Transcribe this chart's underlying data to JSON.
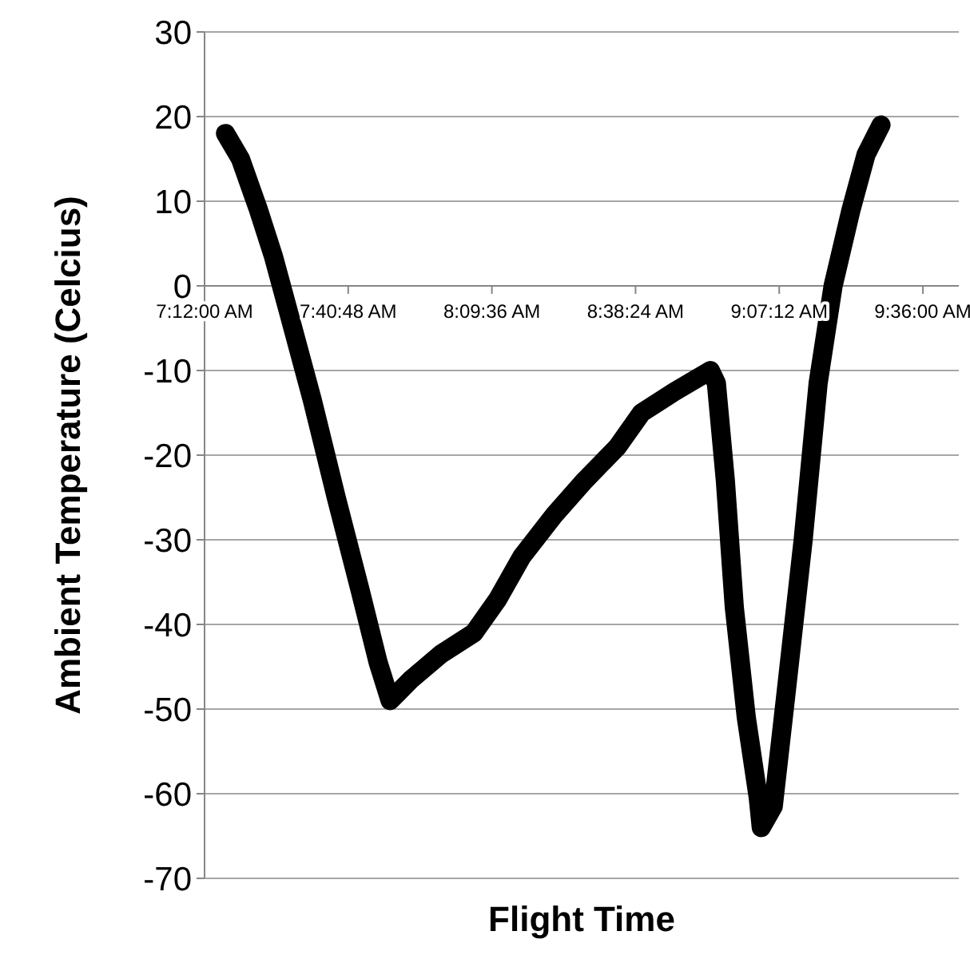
{
  "chart_data": {
    "type": "line",
    "xlabel": "Flight Time",
    "ylabel": "Ambient Temperature (Celcius)",
    "xlim": [
      7.2,
      9.72
    ],
    "xticks": [
      {
        "value": 7.2,
        "label": "7:12:00 AM"
      },
      {
        "value": 7.68,
        "label": "7:40:48 AM"
      },
      {
        "value": 8.16,
        "label": "8:09:36 AM"
      },
      {
        "value": 8.64,
        "label": "8:38:24 AM"
      },
      {
        "value": 9.12,
        "label": "9:07:12 AM"
      },
      {
        "value": 9.6,
        "label": "9:36:00 AM"
      }
    ],
    "ylim": [
      -70,
      30
    ],
    "yticks": [
      -70,
      -60,
      -50,
      -40,
      -30,
      -20,
      -10,
      0,
      10,
      20,
      30
    ],
    "grid": "y",
    "marker": "none",
    "line_style": "solid",
    "series": [
      {
        "color": "#000000",
        "x": [
          7.27,
          7.32,
          7.38,
          7.43,
          7.48,
          7.56,
          7.64,
          7.72,
          7.78,
          7.82,
          7.89,
          7.99,
          8.1,
          8.18,
          8.26,
          8.37,
          8.47,
          8.58,
          8.66,
          8.77,
          8.89,
          8.91,
          8.94,
          8.97,
          9.01,
          9.05,
          9.06,
          9.1,
          9.14,
          9.2,
          9.25,
          9.3,
          9.36,
          9.41,
          9.46
        ],
        "values": [
          18,
          15,
          9,
          3.5,
          -3,
          -13.5,
          -25,
          -36,
          -44.5,
          -49,
          -46.5,
          -43.5,
          -41,
          -37,
          -32,
          -27,
          -23,
          -19,
          -15,
          -12.5,
          -10,
          -11.5,
          -23,
          -38,
          -51,
          -60.5,
          -64,
          -61.5,
          -49,
          -30,
          -11.5,
          0,
          9,
          15.5,
          19
        ]
      }
    ]
  }
}
